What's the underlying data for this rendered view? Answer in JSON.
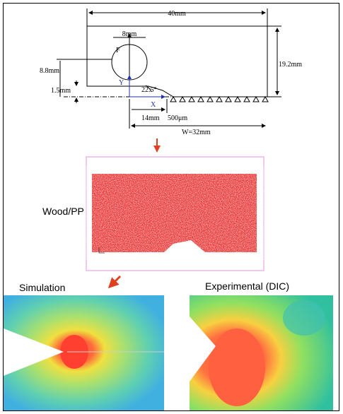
{
  "schematic": {
    "width_label": "40mm",
    "hole_label": "8mm",
    "force_label": "F",
    "height_label": "19.2mm",
    "left_height_label": "8.8mm",
    "offset_label": "1.5mm",
    "y_axis_label": "Y",
    "angle_label": "22.5°",
    "x_axis_label": "X",
    "notch_depth_label": "14mm",
    "notch_tip_label": "500μm",
    "span_label": "W=32mm"
  },
  "mesh": {
    "label": "Wood/PP"
  },
  "results": {
    "simulation_label": "Simulation",
    "experimental_label": "Experimental (DIC)"
  }
}
